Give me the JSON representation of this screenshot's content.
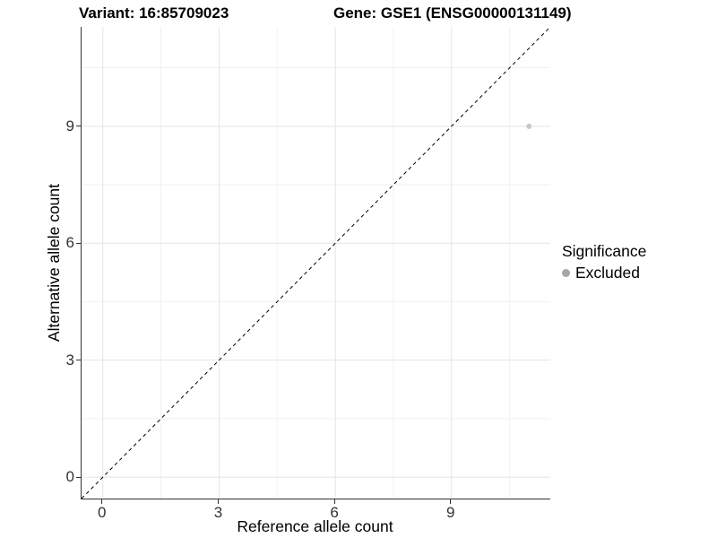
{
  "title": {
    "variant": "Variant: 16:85709023",
    "gene": "Gene: GSE1 (ENSG00000131149)"
  },
  "axes": {
    "x_label": "Reference allele count",
    "y_label": "Alternative allele count"
  },
  "legend": {
    "title": "Significance",
    "items": [
      {
        "label": "Excluded",
        "color": "#a6a6a6"
      }
    ]
  },
  "colors": {
    "background": "#ffffff",
    "grid_major": "#e4e4e4",
    "grid_minor": "#f1f1f1",
    "axis_line": "#333333",
    "tick_label": "#333333",
    "point": "#c8c8c8",
    "diagonal": "#000000"
  },
  "chart_data": {
    "type": "scatter",
    "title": "Variant: 16:85709023  |  Gene: GSE1 (ENSG00000131149)",
    "xlabel": "Reference allele count",
    "ylabel": "Alternative allele count",
    "xlim": [
      -0.55,
      11.55
    ],
    "ylim": [
      -0.55,
      11.55
    ],
    "x_ticks": [
      0,
      3,
      6,
      9
    ],
    "y_ticks": [
      0,
      3,
      6,
      9
    ],
    "x_minor_ticks": [
      1.5,
      4.5,
      7.5,
      10.5
    ],
    "y_minor_ticks": [
      1.5,
      4.5,
      7.5,
      10.5
    ],
    "grid": true,
    "legend_position": "right",
    "series": [
      {
        "name": "Excluded",
        "color": "#c8c8c8",
        "points": [
          {
            "x": 11,
            "y": 9
          }
        ],
        "point_radius": 3
      }
    ],
    "reference_line": {
      "equation": "y = x",
      "style": "dashed",
      "color": "#000000"
    }
  }
}
